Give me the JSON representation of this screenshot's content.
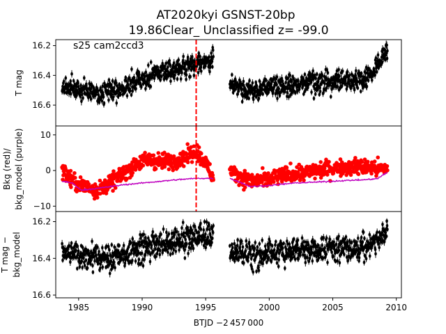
{
  "title_line1": "AT2020kyi  GSNST-20bp",
  "title_line2": "19.86Clear_ Unclassified z= -99.0",
  "annotation": "s25 cam2ccd3",
  "xlabel": "BTJD −2 457 000",
  "colors": {
    "data": "#000000",
    "bkg": "#ff0000",
    "model": "#bf00bf",
    "marker": "#ff0000"
  },
  "chart_data": [
    {
      "type": "scatter",
      "name": "top-panel",
      "ylabel": "T mag",
      "xlim": [
        1983.2,
        2010.4
      ],
      "ylim": [
        16.74,
        16.16
      ],
      "yinverted": true,
      "yticks": [
        16.2,
        16.4,
        16.6
      ],
      "ytick_labels": [
        "16.2",
        "16.4",
        "16.6"
      ],
      "vline_x": 1994.25,
      "segments": [
        {
          "x": [
            1983.7,
            1985.0,
            1986.5,
            1988.0,
            1990.0,
            1991.5,
            1993.0,
            1994.25,
            1995.0,
            1995.6
          ],
          "y": [
            16.47,
            16.49,
            16.52,
            16.5,
            16.43,
            16.37,
            16.36,
            16.32,
            16.3,
            16.28
          ]
        },
        {
          "x": [
            1996.9,
            1998.5,
            2000.0,
            2002.0,
            2004.0,
            2006.0,
            2007.5,
            2008.5,
            2009.3
          ],
          "y": [
            16.44,
            16.51,
            16.48,
            16.46,
            16.45,
            16.44,
            16.43,
            16.33,
            16.24
          ]
        }
      ],
      "scatter_mag": 0.05
    },
    {
      "type": "scatter",
      "name": "middle-panel",
      "ylabel_lines": [
        "Bkg (red)/",
        "bkg_model (purple)"
      ],
      "xlim": [
        1983.2,
        2010.4
      ],
      "ylim": [
        -11.5,
        12.5
      ],
      "yticks": [
        -10,
        0,
        10
      ],
      "ytick_labels": [
        "−10",
        "0",
        "10"
      ],
      "vline_x": 1994.25,
      "series": [
        {
          "name": "Bkg",
          "color": "red",
          "segments": [
            {
              "x": [
                1983.7,
                1984.5,
                1985.5,
                1986.5,
                1987.5,
                1988.5,
                1989.5,
                1990.5,
                1991.5,
                1992.5,
                1993.5,
                1994.25,
                1995.0,
                1995.6
              ],
              "y": [
                0.5,
                -3.0,
                -4.5,
                -5.5,
                -3.5,
                -1.0,
                2.0,
                3.0,
                2.5,
                2.8,
                4.0,
                5.5,
                2.0,
                -2.0
              ]
            },
            {
              "x": [
                1996.9,
                1997.8,
                1998.8,
                2000.0,
                2001.5,
                2003.0,
                2004.5,
                2006.0,
                2007.5,
                2008.5,
                2009.3
              ],
              "y": [
                0.0,
                -2.0,
                -3.0,
                -2.5,
                -1.0,
                -0.5,
                0.5,
                1.0,
                1.0,
                0.5,
                0.5
              ]
            }
          ],
          "scatter": 1.6
        },
        {
          "name": "bkg_model",
          "color": "purple",
          "segments": [
            {
              "x": [
                1983.7,
                1984.5,
                1985.2,
                1986.5,
                1987.5,
                1988.5,
                1990.0,
                1991.5,
                1993.0,
                1994.25,
                1995.6
              ],
              "y": [
                -3.0,
                -3.5,
                -5.5,
                -5.0,
                -4.5,
                -4.0,
                -3.5,
                -3.0,
                -2.5,
                -2.2,
                -2.2
              ]
            },
            {
              "x": [
                1996.9,
                1997.5,
                1998.5,
                2000.0,
                2002.0,
                2004.0,
                2006.0,
                2007.5,
                2008.5,
                2009.3
              ],
              "y": [
                -2.2,
                -3.0,
                -4.5,
                -4.2,
                -3.5,
                -3.2,
                -2.8,
                -2.6,
                -2.3,
                -0.5
              ]
            }
          ]
        }
      ]
    },
    {
      "type": "scatter",
      "name": "bottom-panel",
      "ylabel_lines": [
        "T mag −",
        "bkg_model"
      ],
      "xlim": [
        1983.2,
        2010.4
      ],
      "ylim": [
        16.615,
        16.145
      ],
      "yinverted": true,
      "yticks": [
        16.2,
        16.4,
        16.6
      ],
      "ytick_labels": [
        "16.2",
        "16.4",
        "16.6"
      ],
      "xticks": [
        1985,
        1990,
        1995,
        2000,
        2005,
        2010
      ],
      "xtick_labels": [
        "1985",
        "1990",
        "1995",
        "2000",
        "2005",
        "2010"
      ],
      "segments": [
        {
          "x": [
            1983.7,
            1985.5,
            1987.5,
            1989.5,
            1991.0,
            1992.5,
            1994.0,
            1995.6
          ],
          "y": [
            16.36,
            16.39,
            16.4,
            16.36,
            16.32,
            16.31,
            16.29,
            16.27
          ]
        },
        {
          "x": [
            1996.9,
            1998.5,
            2000.5,
            2002.5,
            2004.5,
            2006.5,
            2008.0,
            2009.3
          ],
          "y": [
            16.36,
            16.38,
            16.37,
            16.36,
            16.35,
            16.35,
            16.34,
            16.25
          ]
        }
      ],
      "scatter_mag": 0.05
    }
  ]
}
